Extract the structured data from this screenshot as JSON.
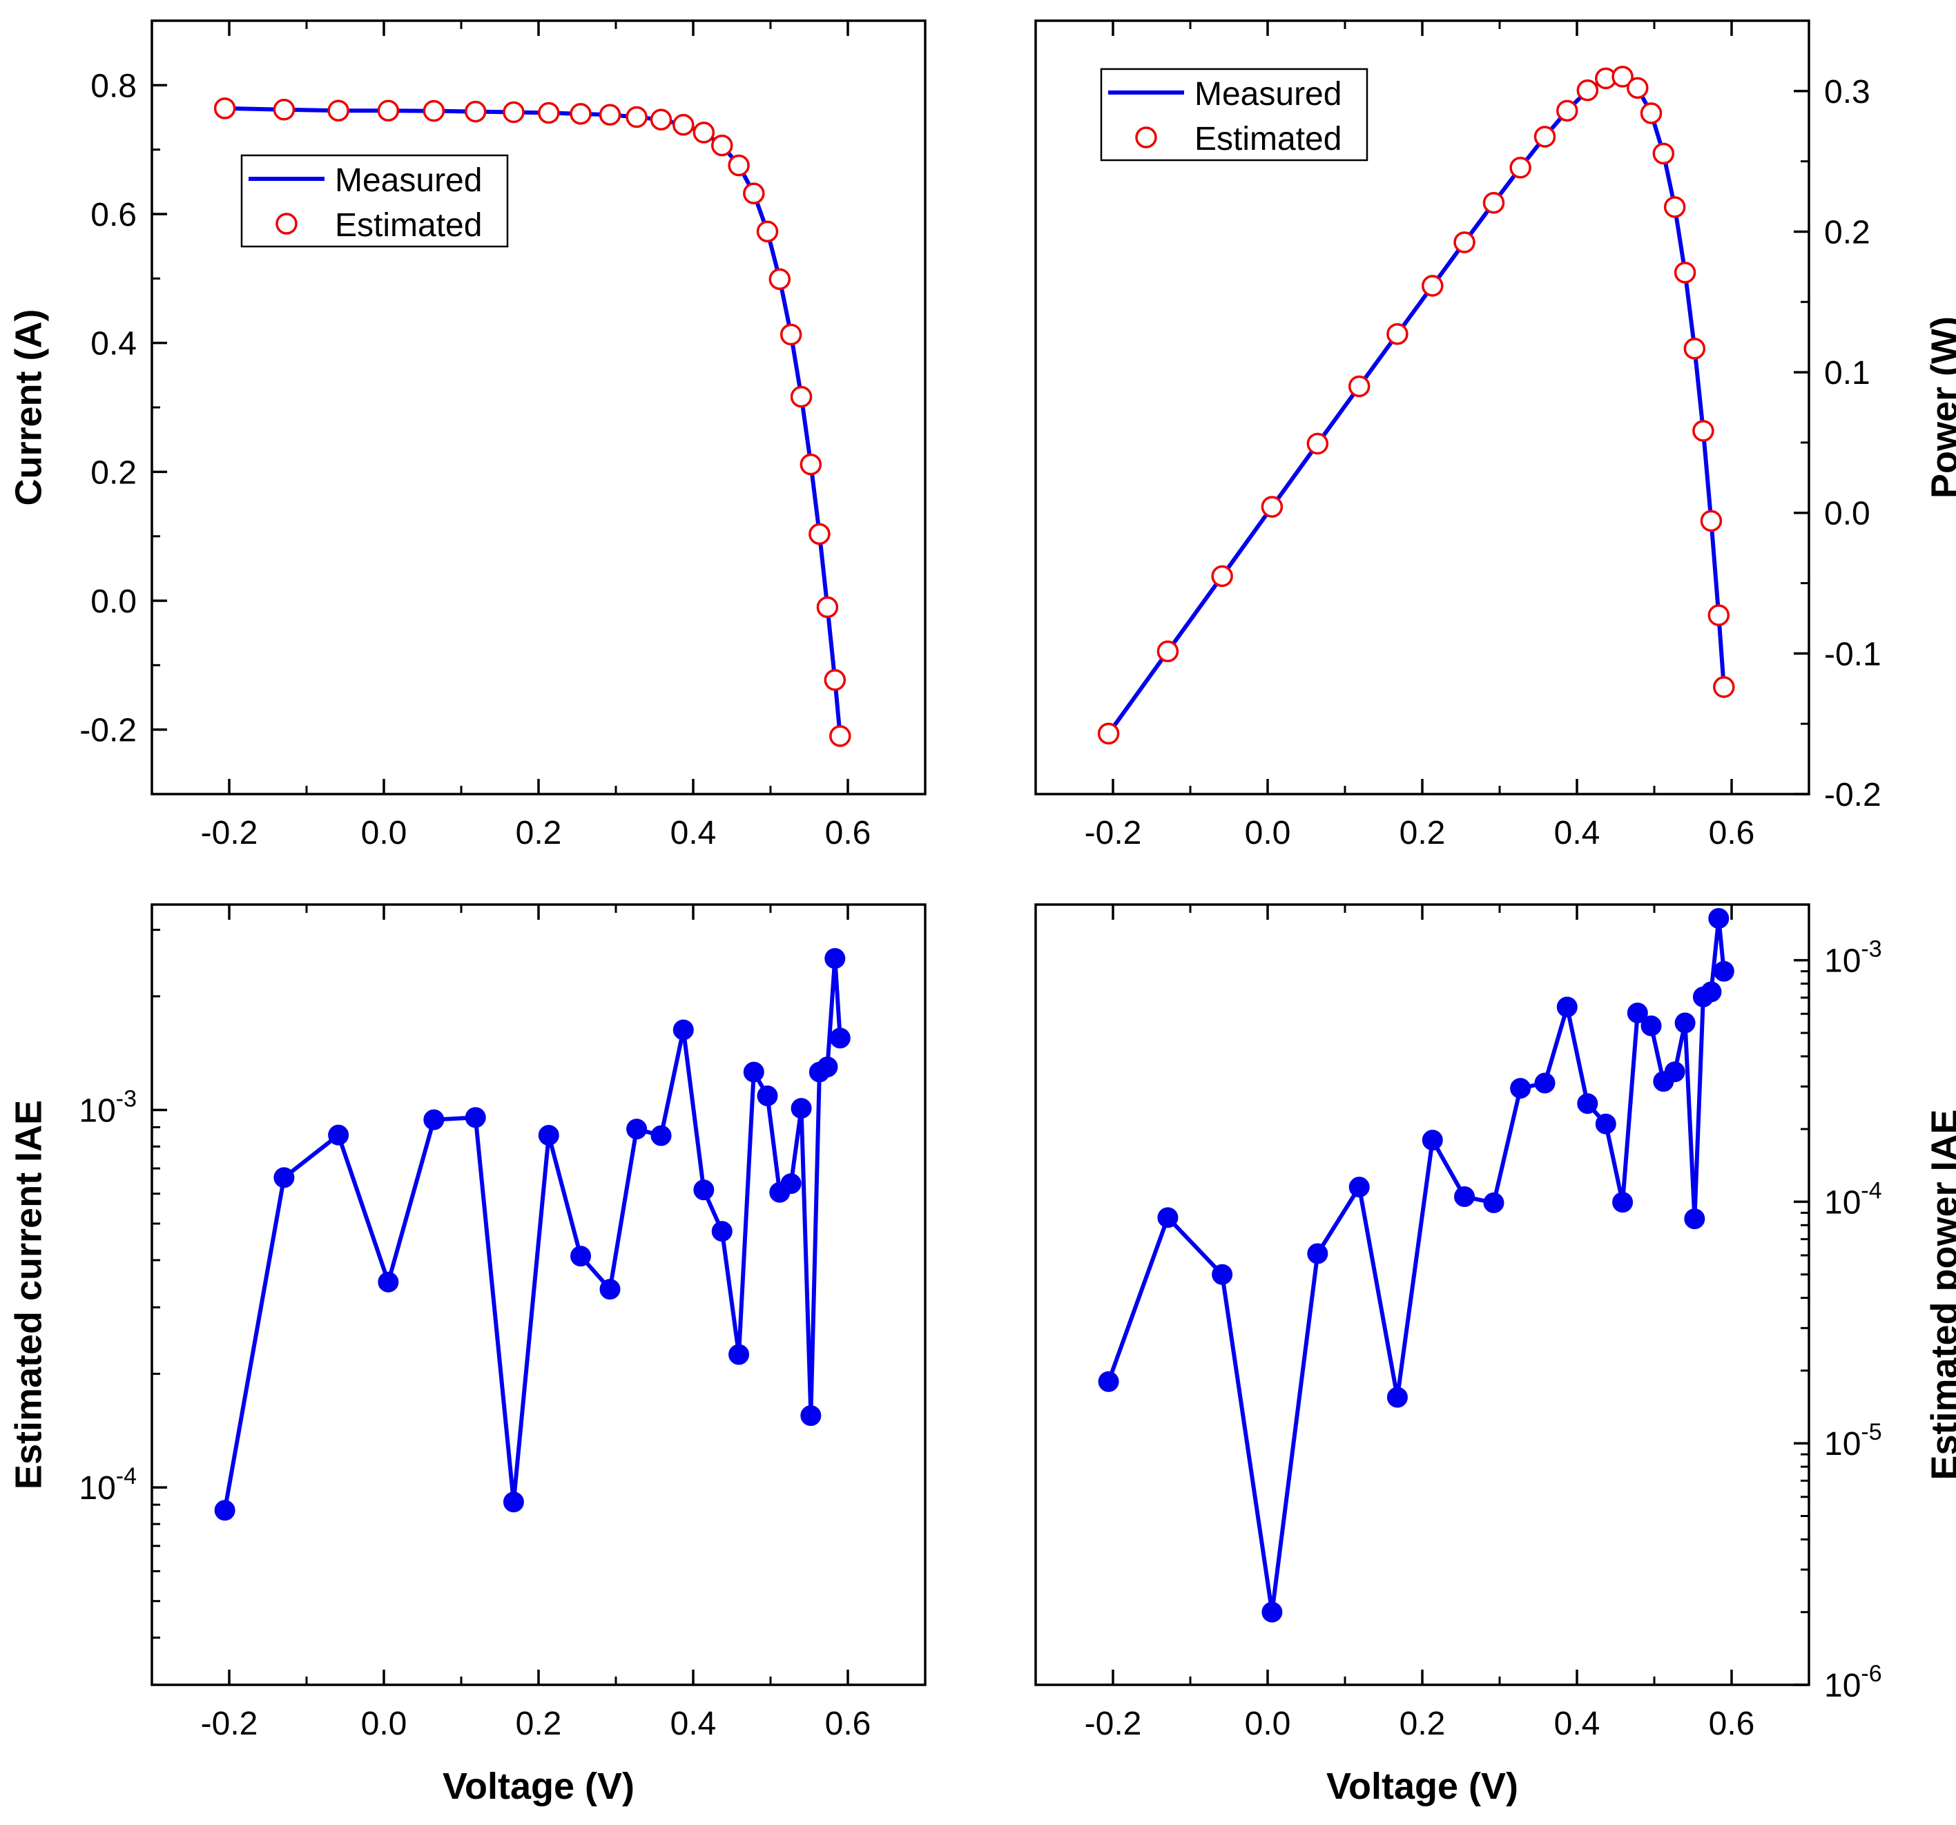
{
  "chart_data": [
    {
      "id": "tl",
      "type": "line",
      "scale": "linear",
      "title": "",
      "xlabel": "",
      "ylabel": "Current (A)",
      "ylabel_side": "left",
      "xlim": [
        -0.3,
        0.7
      ],
      "ylim": [
        -0.3,
        0.9
      ],
      "xticks": [
        -0.2,
        0.0,
        0.2,
        0.4,
        0.6
      ],
      "xtick_labels": [
        "-0.2",
        "0.0",
        "0.2",
        "0.4",
        "0.6"
      ],
      "xminor": [
        -0.3,
        -0.1,
        0.1,
        0.3,
        0.5,
        0.7
      ],
      "yticks": [
        -0.2,
        0.0,
        0.2,
        0.4,
        0.6,
        0.8
      ],
      "ytick_labels": [
        "-0.2",
        "0.0",
        "0.2",
        "0.4",
        "0.6",
        "0.8"
      ],
      "yminor": [
        -0.3,
        -0.1,
        0.1,
        0.3,
        0.5,
        0.7,
        0.9
      ],
      "legend": {
        "position": "upper-left",
        "entries": [
          "Measured",
          "Estimated"
        ]
      },
      "series": [
        {
          "name": "Measured",
          "style": "line",
          "color": "#0000ee",
          "x": [
            -0.2057,
            -0.1291,
            -0.0588,
            0.0057,
            0.0646,
            0.1185,
            0.1678,
            0.2132,
            0.2545,
            0.2924,
            0.3269,
            0.3585,
            0.3873,
            0.4137,
            0.4373,
            0.459,
            0.4784,
            0.496,
            0.5119,
            0.5265,
            0.5398,
            0.5521,
            0.5633,
            0.5736,
            0.5833,
            0.59
          ],
          "y": [
            0.764,
            0.762,
            0.7605,
            0.7605,
            0.76,
            0.759,
            0.758,
            0.757,
            0.7555,
            0.754,
            0.7505,
            0.7465,
            0.7385,
            0.7265,
            0.7065,
            0.6755,
            0.632,
            0.573,
            0.499,
            0.413,
            0.3165,
            0.2115,
            0.1035,
            -0.01,
            -0.123,
            -0.21
          ]
        },
        {
          "name": "Estimated",
          "style": "open-circle",
          "color": "#ee0000",
          "x": [
            -0.2057,
            -0.1291,
            -0.0588,
            0.0057,
            0.0646,
            0.1185,
            0.1678,
            0.2132,
            0.2545,
            0.2924,
            0.3269,
            0.3585,
            0.3873,
            0.4137,
            0.4373,
            0.459,
            0.4784,
            0.496,
            0.5119,
            0.5265,
            0.5398,
            0.5521,
            0.5633,
            0.5736,
            0.5833,
            0.59
          ],
          "y": [
            0.764,
            0.762,
            0.7605,
            0.7605,
            0.76,
            0.759,
            0.758,
            0.757,
            0.7555,
            0.754,
            0.7505,
            0.7465,
            0.7385,
            0.7265,
            0.7065,
            0.6755,
            0.632,
            0.573,
            0.499,
            0.413,
            0.3165,
            0.2115,
            0.1035,
            -0.01,
            -0.123,
            -0.21
          ]
        }
      ]
    },
    {
      "id": "tr",
      "type": "line",
      "scale": "linear",
      "title": "",
      "xlabel": "",
      "ylabel": "Power (W)",
      "ylabel_side": "right",
      "xlim": [
        -0.3,
        0.7
      ],
      "ylim": [
        -0.2,
        0.35
      ],
      "xticks": [
        -0.2,
        0.0,
        0.2,
        0.4,
        0.6
      ],
      "xtick_labels": [
        "-0.2",
        "0.0",
        "0.2",
        "0.4",
        "0.6"
      ],
      "xminor": [
        -0.3,
        -0.1,
        0.1,
        0.3,
        0.5,
        0.7
      ],
      "yticks": [
        -0.2,
        -0.1,
        0.0,
        0.1,
        0.2,
        0.3
      ],
      "ytick_labels": [
        "-0.2",
        "-0.1",
        "0.0",
        "0.1",
        "0.2",
        "0.3"
      ],
      "yminor": [
        -0.15,
        -0.05,
        0.05,
        0.15,
        0.25,
        0.35
      ],
      "legend": {
        "position": "upper-left",
        "entries": [
          "Measured",
          "Estimated"
        ]
      },
      "series": [
        {
          "name": "Measured",
          "style": "line",
          "color": "#0000ee",
          "x": [
            -0.2057,
            -0.1291,
            -0.0588,
            0.0057,
            0.0646,
            0.1185,
            0.1678,
            0.2132,
            0.2545,
            0.2924,
            0.3269,
            0.3585,
            0.3873,
            0.4137,
            0.4373,
            0.459,
            0.4784,
            0.496,
            0.5119,
            0.5265,
            0.5398,
            0.5521,
            0.5633,
            0.5736,
            0.5833,
            0.59
          ],
          "y": [
            -0.157,
            -0.0985,
            -0.045,
            0.0043,
            0.0492,
            0.09,
            0.1272,
            0.1615,
            0.1924,
            0.2205,
            0.2455,
            0.2675,
            0.286,
            0.3005,
            0.309,
            0.3102,
            0.3022,
            0.2842,
            0.2555,
            0.2175,
            0.1709,
            0.1168,
            0.0583,
            -0.0057,
            -0.0728,
            -0.1239
          ]
        },
        {
          "name": "Estimated",
          "style": "open-circle",
          "color": "#ee0000",
          "x": [
            -0.2057,
            -0.1291,
            -0.0588,
            0.0057,
            0.0646,
            0.1185,
            0.1678,
            0.2132,
            0.2545,
            0.2924,
            0.3269,
            0.3585,
            0.3873,
            0.4137,
            0.4373,
            0.459,
            0.4784,
            0.496,
            0.5119,
            0.5265,
            0.5398,
            0.5521,
            0.5633,
            0.5736,
            0.5833,
            0.59
          ],
          "y": [
            -0.157,
            -0.0985,
            -0.045,
            0.0043,
            0.0492,
            0.09,
            0.1272,
            0.1615,
            0.1924,
            0.2205,
            0.2455,
            0.2675,
            0.286,
            0.3005,
            0.309,
            0.3102,
            0.3022,
            0.2842,
            0.2555,
            0.2175,
            0.1709,
            0.1168,
            0.0583,
            -0.0057,
            -0.0728,
            -0.1239
          ]
        }
      ]
    },
    {
      "id": "bl",
      "type": "line",
      "scale": "log",
      "title": "",
      "xlabel": "Voltage (V)",
      "ylabel": "Estimated current IAE",
      "ylabel_side": "left",
      "xlim": [
        -0.3,
        0.7
      ],
      "ylim": [
        3e-05,
        0.0035
      ],
      "xticks": [
        -0.2,
        0.0,
        0.2,
        0.4,
        0.6
      ],
      "xtick_labels": [
        "-0.2",
        "0.0",
        "0.2",
        "0.4",
        "0.6"
      ],
      "xminor": [
        -0.3,
        -0.1,
        0.1,
        0.3,
        0.5,
        0.7
      ],
      "log_decades": [
        {
          "value": 0.0001,
          "base": "10",
          "exp": "-4"
        },
        {
          "value": 0.001,
          "base": "10",
          "exp": "-3"
        }
      ],
      "legend": null,
      "series": [
        {
          "name": "Current IAE",
          "style": "line-filled-circle",
          "color": "#0000ee",
          "x": [
            -0.2057,
            -0.1291,
            -0.0588,
            0.0057,
            0.0646,
            0.1185,
            0.1678,
            0.2132,
            0.2545,
            0.2924,
            0.3269,
            0.3585,
            0.3873,
            0.4137,
            0.4373,
            0.459,
            0.4784,
            0.496,
            0.5119,
            0.5265,
            0.5398,
            0.5521,
            0.5633,
            0.5736,
            0.5833,
            0.59
          ],
          "y": [
            8.7e-05,
            0.000662,
            0.000858,
            0.00035,
            0.000942,
            0.000955,
            9.15e-05,
            0.000857,
            0.00041,
            0.000335,
            0.00089,
            0.000855,
            0.00163,
            0.000614,
            0.000477,
            0.000225,
            0.00126,
            0.00109,
            0.000605,
            0.000638,
            0.00101,
            0.000155,
            0.00126,
            0.0013,
            0.00252,
            0.00155
          ]
        }
      ]
    },
    {
      "id": "br",
      "type": "line",
      "scale": "log",
      "title": "",
      "xlabel": "Voltage (V)",
      "ylabel": "Estimated power IAE",
      "ylabel_side": "right",
      "xlim": [
        -0.3,
        0.7
      ],
      "ylim": [
        1e-06,
        0.0017
      ],
      "xticks": [
        -0.2,
        0.0,
        0.2,
        0.4,
        0.6
      ],
      "xtick_labels": [
        "-0.2",
        "0.0",
        "0.2",
        "0.4",
        "0.6"
      ],
      "xminor": [
        -0.3,
        -0.1,
        0.1,
        0.3,
        0.5,
        0.7
      ],
      "log_decades": [
        {
          "value": 1e-06,
          "base": "10",
          "exp": "-6"
        },
        {
          "value": 1e-05,
          "base": "10",
          "exp": "-5"
        },
        {
          "value": 0.0001,
          "base": "10",
          "exp": "-4"
        },
        {
          "value": 0.001,
          "base": "10",
          "exp": "-3"
        }
      ],
      "legend": null,
      "series": [
        {
          "name": "Power IAE",
          "style": "line-filled-circle",
          "color": "#0000ee",
          "x": [
            -0.2057,
            -0.1291,
            -0.0588,
            0.0057,
            0.0646,
            0.1185,
            0.1678,
            0.2132,
            0.2545,
            0.2924,
            0.3269,
            0.3585,
            0.3873,
            0.4137,
            0.4373,
            0.459,
            0.4784,
            0.496,
            0.5119,
            0.5265,
            0.5398,
            0.5521,
            0.5633,
            0.5736,
            0.5833,
            0.59
          ],
          "y": [
            1.8e-05,
            8.6e-05,
            5e-05,
            2e-06,
            6.1e-05,
            0.000115,
            1.55e-05,
            0.00018,
            0.000105,
            9.9e-05,
            0.000295,
            0.00031,
            0.00064,
            0.000255,
            0.00021,
            9.95e-05,
            0.000605,
            0.000535,
            0.000315,
            0.000345,
            0.00055,
            8.5e-05,
            0.000705,
            0.00074,
            0.00149,
            0.0009
          ]
        }
      ]
    }
  ]
}
